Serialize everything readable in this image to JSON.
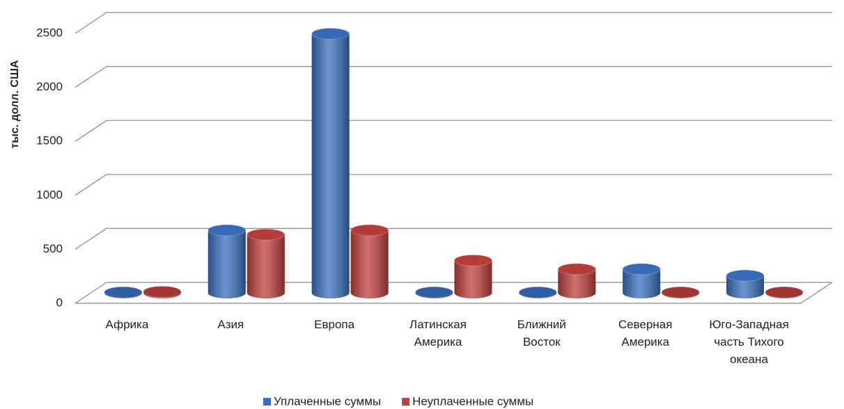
{
  "chart_data": {
    "type": "bar3d",
    "y_label": "тыс. долл. США",
    "categories": [
      "Африка",
      "Азия",
      "Европа",
      "Латинская Америка",
      "Ближний Восток",
      "Северная Америка",
      "Юго-Западная часть Тихого океана"
    ],
    "series": [
      {
        "name": "Уплаченные суммы",
        "color": "#3a6fc0",
        "values": [
          5,
          580,
          2400,
          5,
          5,
          220,
          160
        ]
      },
      {
        "name": "Неуплаченные суммы",
        "color": "#c0403d",
        "values": [
          10,
          540,
          580,
          300,
          220,
          5,
          5
        ]
      }
    ],
    "ylim": [
      0,
      2500
    ],
    "yticks": [
      0,
      500,
      1000,
      1500,
      2000,
      2500
    ],
    "grid": true,
    "legend": "bottom"
  }
}
